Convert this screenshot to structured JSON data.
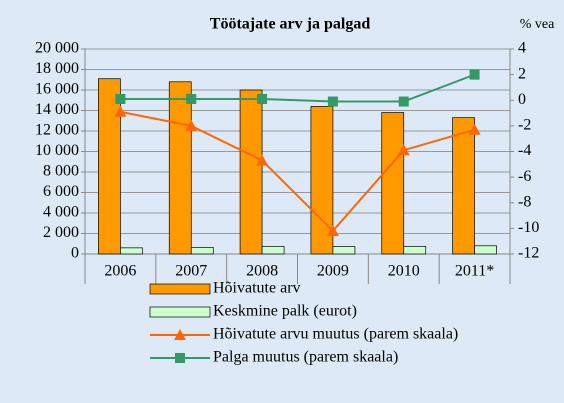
{
  "chart_data": {
    "type": "bar-line",
    "title": "Töötajate arv ja palgad",
    "y2_label": "% vea",
    "categories": [
      "2006",
      "2007",
      "2008",
      "2009",
      "2010",
      "2011*"
    ],
    "series": [
      {
        "name": "Hõivatute arv",
        "type": "bar",
        "color": "#ff9900",
        "values": [
          17100,
          16800,
          16000,
          14400,
          13800,
          13300
        ]
      },
      {
        "name": "Keskmine palk (eurot)",
        "type": "bar",
        "color": "#ccffcc",
        "values": [
          600,
          650,
          750,
          730,
          750,
          800
        ]
      },
      {
        "name": "Hõivatute arvu muutus (parem skaala)",
        "type": "line",
        "marker": "triangle",
        "axis": "y2",
        "color": "#ff6600",
        "values": [
          -0.9,
          -2.0,
          -4.7,
          -10.2,
          -3.9,
          -2.3
        ]
      },
      {
        "name": "Palga muutus (parem skaala)",
        "type": "line",
        "marker": "square",
        "axis": "y2",
        "color": "#339966",
        "values": [
          0.1,
          0.1,
          0.1,
          -0.1,
          -0.1,
          2.0
        ]
      }
    ],
    "ylim": [
      0,
      20000
    ],
    "yticks": [
      0,
      {
        "value": 2000,
        "label": "2 000"
      },
      {
        "value": 4000,
        "label": "4 000"
      },
      {
        "value": 6000,
        "label": "6 000"
      },
      {
        "value": 8000,
        "label": "8 000"
      },
      {
        "value": 10000,
        "label": "10 000"
      },
      {
        "value": 12000,
        "label": "12 000"
      },
      {
        "value": 14000,
        "label": "14 000"
      },
      {
        "value": 16000,
        "label": "16 000"
      },
      {
        "value": 18000,
        "label": "18 000"
      },
      {
        "value": 20000,
        "label": "20 000"
      }
    ],
    "y2lim": [
      -12,
      4
    ],
    "y2ticks": [
      -12,
      -10,
      -8,
      -6,
      -4,
      -2,
      0,
      2,
      4
    ],
    "grid": true,
    "legend": "bottom"
  }
}
